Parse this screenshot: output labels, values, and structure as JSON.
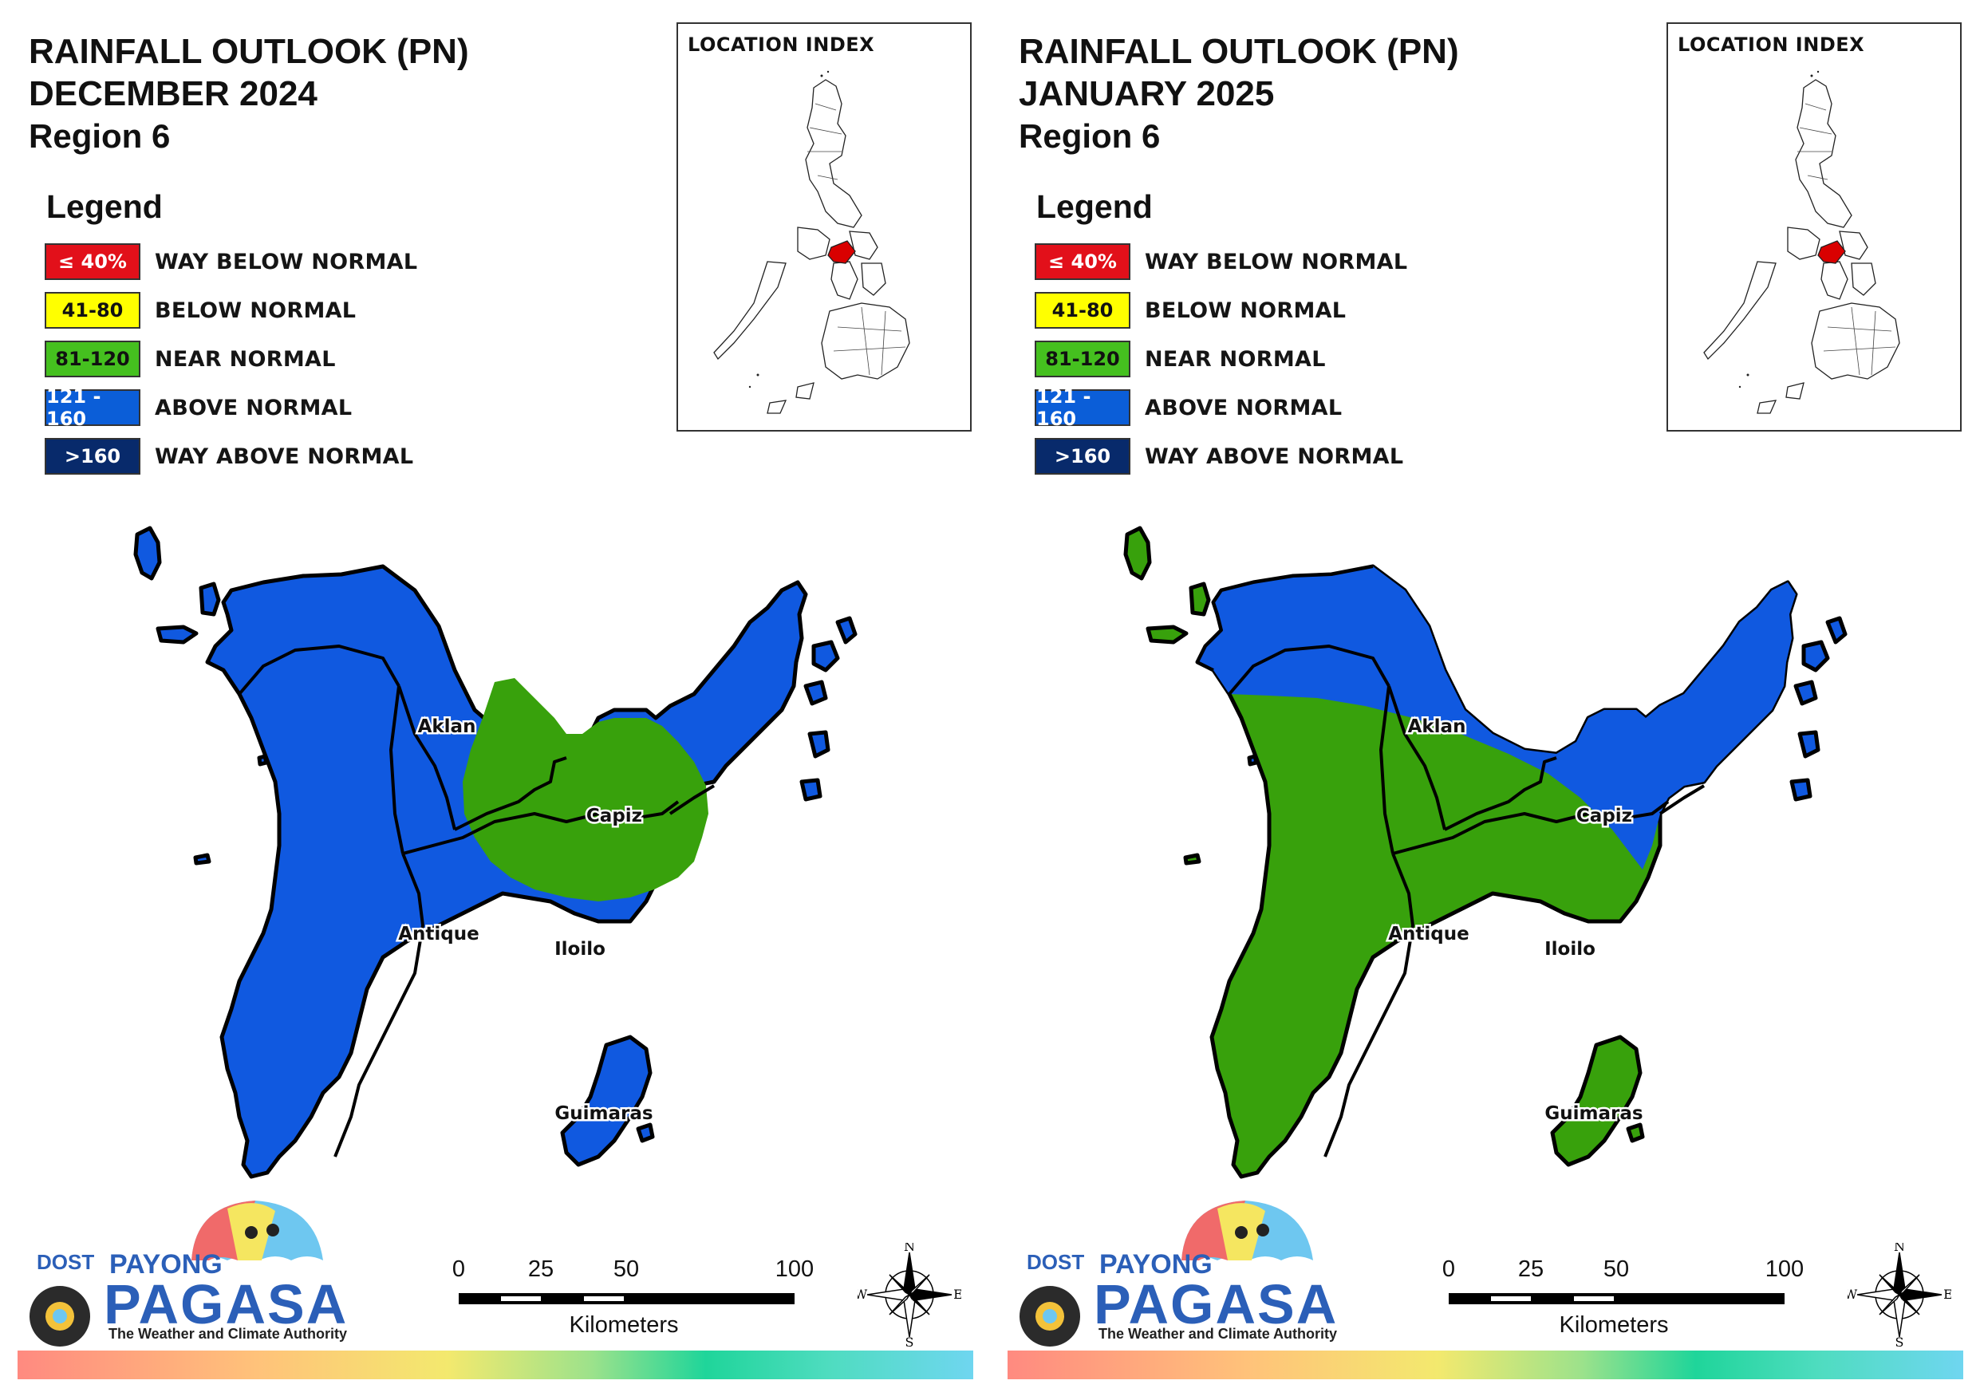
{
  "legend": {
    "title": "Legend",
    "items": [
      {
        "range": "≤ 40%",
        "label": "WAY BELOW NORMAL",
        "color": "#e2101a",
        "text_color": "#ffffff"
      },
      {
        "range": "41-80",
        "label": "BELOW NORMAL",
        "color": "#ffff00",
        "text_color": "#111111"
      },
      {
        "range": "81-120",
        "label": "NEAR NORMAL",
        "color": "#45c01f",
        "text_color": "#111111"
      },
      {
        "range": "121 - 160",
        "label": "ABOVE NORMAL",
        "color": "#0b5ed8",
        "text_color": "#ffffff"
      },
      {
        "range": ">160",
        "label": "WAY ABOVE NORMAL",
        "color": "#082a6b",
        "text_color": "#ffffff"
      }
    ]
  },
  "colors": {
    "above_normal": "#1059e0",
    "near_normal": "#38a10c",
    "highlight_region": "#d90000"
  },
  "panels": [
    {
      "title_line1": "RAINFALL OUTLOOK (PN)",
      "title_line2": "DECEMBER 2024",
      "title_line3": "Region 6",
      "inset_title": "LOCATION INDEX",
      "provinces": {
        "aklan": "Aklan",
        "capiz": "Capiz",
        "antique": "Antique",
        "iloilo": "Iloilo",
        "guimaras": "Guimaras"
      }
    },
    {
      "title_line1": "RAINFALL OUTLOOK (PN)",
      "title_line2": "JANUARY 2025",
      "title_line3": "Region 6",
      "inset_title": "LOCATION INDEX",
      "provinces": {
        "aklan": "Aklan",
        "capiz": "Capiz",
        "antique": "Antique",
        "iloilo": "Iloilo",
        "guimaras": "Guimaras"
      }
    }
  ],
  "scale_bar": {
    "ticks": [
      "0",
      "25",
      "50",
      "100"
    ],
    "unit": "Kilometers"
  },
  "compass": {
    "n": "N",
    "s": "S",
    "e": "E",
    "w": "W"
  },
  "logo": {
    "dost": "DOST",
    "payong": "PAYONG",
    "pagasa": "PAGASA",
    "tagline": "The Weather and Climate Authority"
  }
}
